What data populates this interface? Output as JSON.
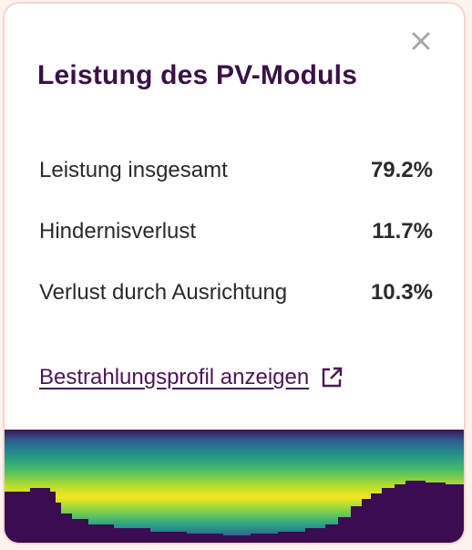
{
  "panel": {
    "title": "Leistung des PV-Moduls",
    "close_icon": "close-icon"
  },
  "metrics": [
    {
      "label": "Leistung insgesamt",
      "value": "79.2%"
    },
    {
      "label": "Hindernisverlust",
      "value": "11.7%"
    },
    {
      "label": "Verlust durch Ausrichtung",
      "value": "10.3%"
    }
  ],
  "link": {
    "label": "Bestrahlungsprofil anzeigen",
    "icon": "external-link-icon"
  },
  "colors": {
    "title": "#3a1246",
    "link": "#4a1656",
    "border": "#f6d5c9",
    "obstruction": "#3b0c52"
  }
}
